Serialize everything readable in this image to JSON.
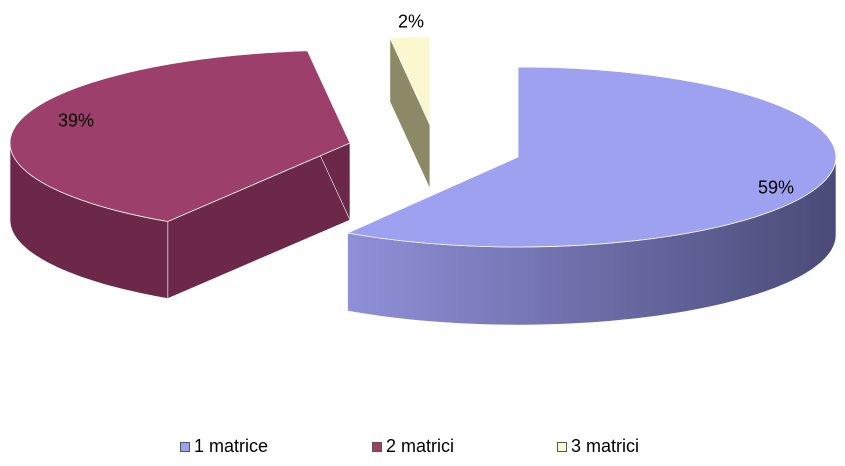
{
  "chart_data": {
    "type": "pie",
    "style": "3d-exploded",
    "title": "",
    "categories": [
      "1 matrice",
      "2 matrici",
      "3 matrici"
    ],
    "values": [
      59,
      39,
      2
    ],
    "labels": [
      "59%",
      "39%",
      "2%"
    ],
    "colors": [
      "#9ea0f0",
      "#9c3f6a",
      "#fbf7cf"
    ],
    "side_colors": [
      "#5a5b96",
      "#6c2848",
      "#8c8a66"
    ],
    "legend_position": "bottom",
    "start_angle_deg": -90,
    "direction": "clockwise"
  }
}
